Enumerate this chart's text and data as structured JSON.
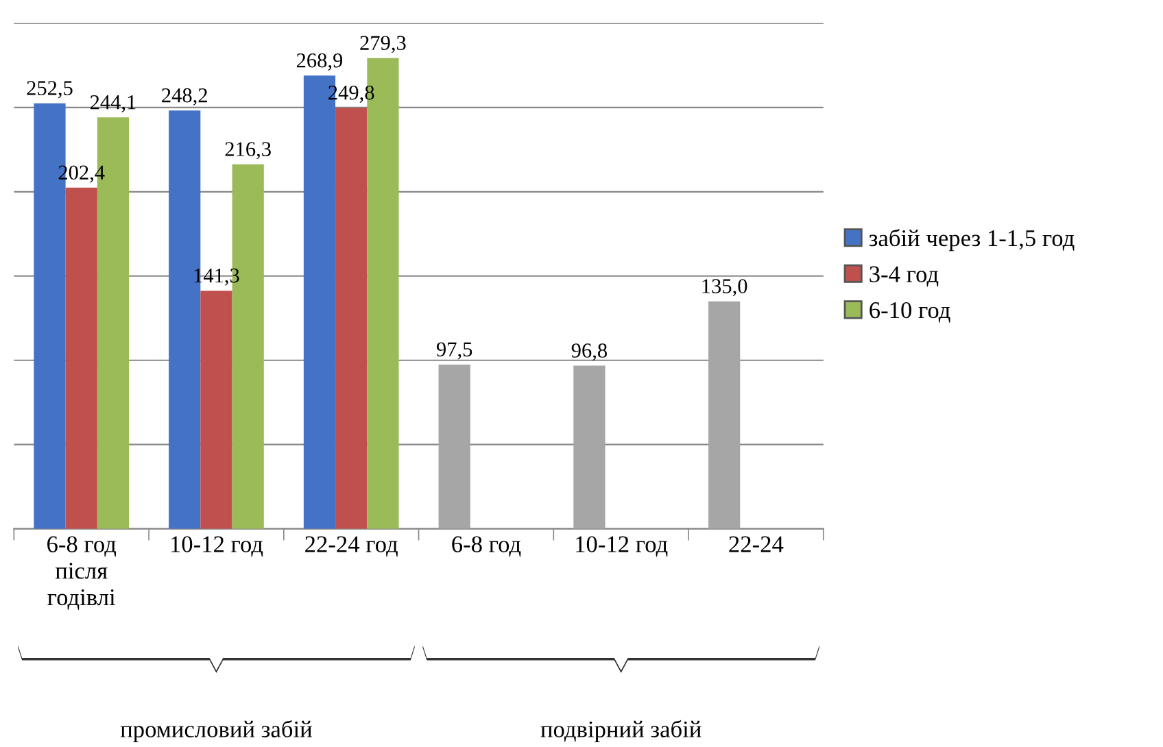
{
  "chart_data": {
    "type": "bar",
    "categories": [
      "6-8 год\nпісля\nгодівлі",
      "10-12 год",
      "22-24 год",
      "6-8 год",
      "10-12 год",
      "22-24"
    ],
    "series": [
      {
        "name": "забій через 1-1,5 год",
        "color": "#4472c4",
        "colors": [
          "#4472c4",
          "#4472c4",
          "#4472c4",
          "#a6a6a6",
          "#a6a6a6",
          "#a6a6a6"
        ],
        "values": [
          252.5,
          248.2,
          268.9,
          97.5,
          96.8,
          135.0
        ],
        "value_labels": [
          "252,5",
          "248,2",
          "268,9",
          "97,5",
          "96,8",
          "135,0"
        ]
      },
      {
        "name": "3-4 год",
        "color": "#c0504d",
        "values": [
          202.4,
          141.3,
          249.8,
          null,
          null,
          null
        ],
        "value_labels": [
          "202,4",
          "141,3",
          "249,8",
          null,
          null,
          null
        ]
      },
      {
        "name": "6-10 год",
        "color": "#9bbb59",
        "values": [
          244.1,
          216.3,
          279.3,
          null,
          null,
          null
        ],
        "value_labels": [
          "244,1",
          "216,3",
          "279,3",
          null,
          null,
          null
        ]
      }
    ],
    "ylim": [
      0,
      300
    ],
    "yticks": [
      {
        "value": 0,
        "label": null
      },
      {
        "value": 50,
        "label": null
      },
      {
        "value": 100,
        "label": null
      },
      {
        "value": 150,
        "label": null
      },
      {
        "value": 200,
        "label": null
      },
      {
        "value": 250,
        "label": null
      },
      {
        "value": 300,
        "label": null
      }
    ],
    "tick_labels": "x",
    "grid": "y",
    "legend": "right",
    "annotations": [
      "промисловий забій",
      "подвірний забій"
    ]
  }
}
